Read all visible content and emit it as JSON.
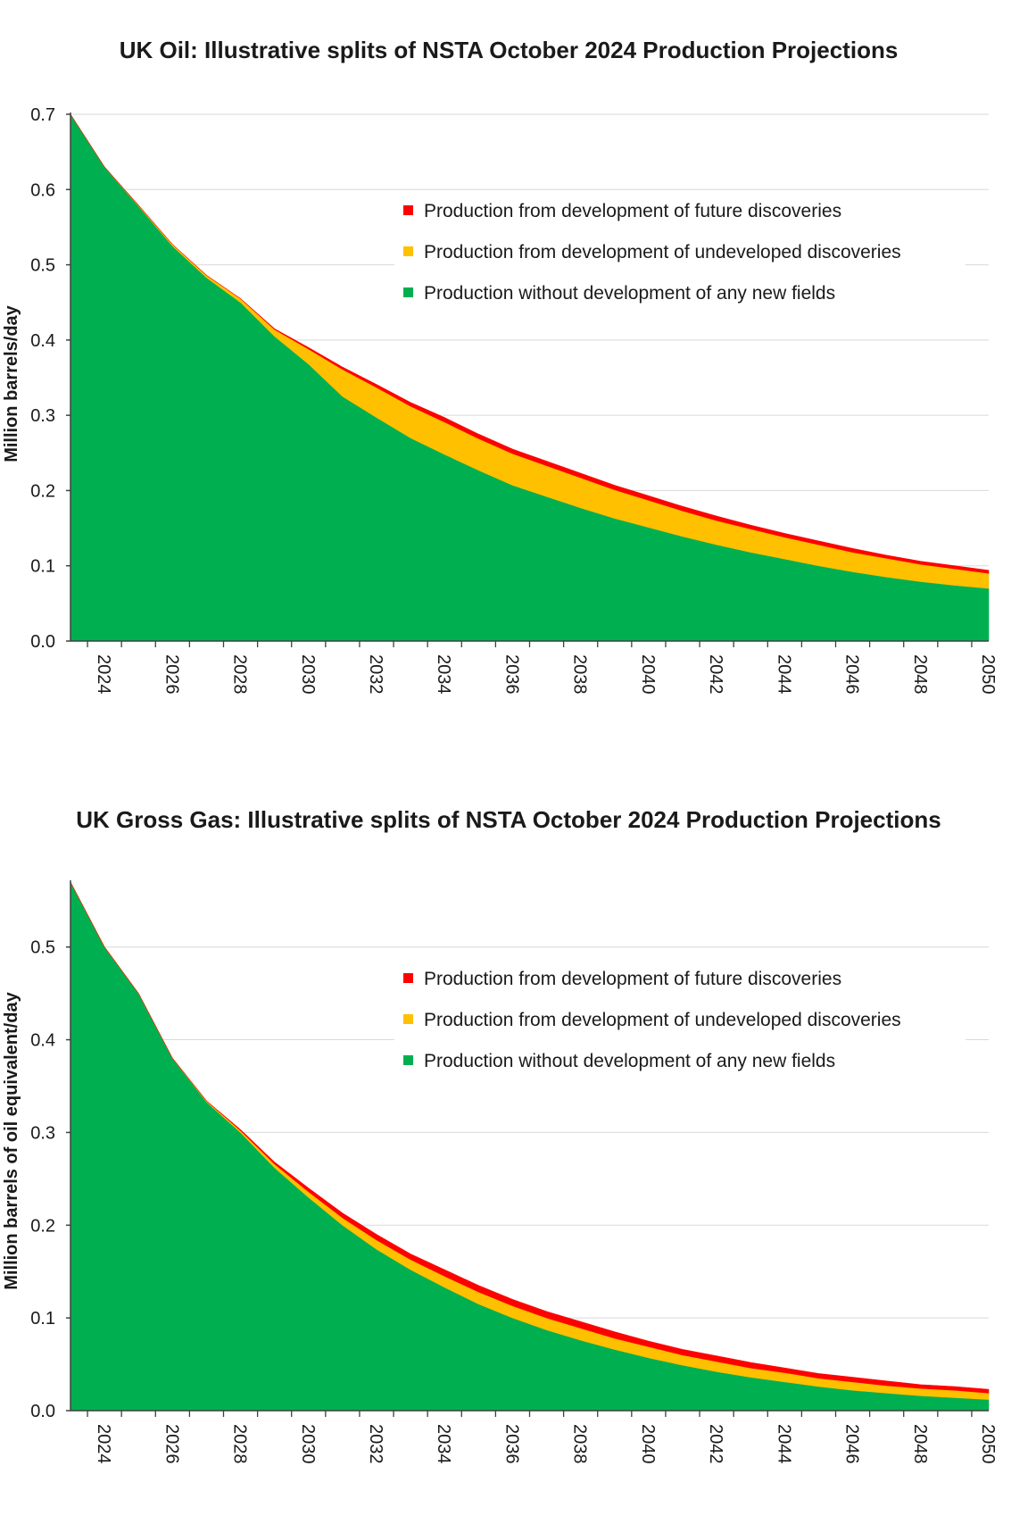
{
  "chart_data": [
    {
      "type": "area",
      "stacked": true,
      "title": "UK Oil: Illustrative splits of NSTA October 2024 Production Projections",
      "ylabel": "Million barrels/day",
      "xlabel": "",
      "ylim": [
        0,
        0.7
      ],
      "yticks": [
        "0.0",
        "0.1",
        "0.2",
        "0.3",
        "0.4",
        "0.5",
        "0.6",
        "0.7"
      ],
      "x": [
        2023,
        2024,
        2025,
        2026,
        2027,
        2028,
        2029,
        2030,
        2031,
        2032,
        2033,
        2034,
        2035,
        2036,
        2037,
        2038,
        2039,
        2040,
        2041,
        2042,
        2043,
        2044,
        2045,
        2046,
        2047,
        2048,
        2049,
        2050
      ],
      "xticks": [
        "2024",
        "2026",
        "2028",
        "2030",
        "2032",
        "2034",
        "2036",
        "2038",
        "2040",
        "2042",
        "2044",
        "2046",
        "2048",
        "2050"
      ],
      "grid": true,
      "legend_position": "upper-right",
      "series": [
        {
          "name": "Production without development of any new fields",
          "color": "#00b050",
          "values": [
            0.7,
            0.63,
            0.578,
            0.525,
            0.483,
            0.45,
            0.405,
            0.368,
            0.325,
            0.297,
            0.27,
            0.248,
            0.227,
            0.207,
            0.192,
            0.177,
            0.163,
            0.151,
            0.139,
            0.128,
            0.118,
            0.109,
            0.1,
            0.092,
            0.085,
            0.079,
            0.074,
            0.07
          ]
        },
        {
          "name": "Production from development of undeveloped discoveries",
          "color": "#ffc000",
          "values": [
            0.0,
            0.0,
            0.001,
            0.002,
            0.003,
            0.005,
            0.009,
            0.02,
            0.036,
            0.04,
            0.042,
            0.043,
            0.042,
            0.042,
            0.041,
            0.04,
            0.038,
            0.036,
            0.034,
            0.032,
            0.031,
            0.029,
            0.028,
            0.026,
            0.025,
            0.023,
            0.022,
            0.02
          ]
        },
        {
          "name": "Production from development of future discoveries",
          "color": "#ff0000",
          "values": [
            0.0,
            0.0,
            0.0,
            0.0,
            0.0,
            0.0,
            0.001,
            0.002,
            0.003,
            0.004,
            0.005,
            0.006,
            0.006,
            0.006,
            0.006,
            0.006,
            0.006,
            0.006,
            0.006,
            0.006,
            0.005,
            0.005,
            0.005,
            0.005,
            0.004,
            0.004,
            0.004,
            0.004
          ]
        }
      ]
    },
    {
      "type": "area",
      "stacked": true,
      "title": "UK Gross Gas: Illustrative splits of NSTA October 2024 Production Projections",
      "ylabel": "Million barrels of oil equivalent/day",
      "xlabel": "",
      "ylim": [
        0,
        0.57
      ],
      "yticks": [
        "0.0",
        "0.1",
        "0.2",
        "0.3",
        "0.4",
        "0.5"
      ],
      "x": [
        2023,
        2024,
        2025,
        2026,
        2027,
        2028,
        2029,
        2030,
        2031,
        2032,
        2033,
        2034,
        2035,
        2036,
        2037,
        2038,
        2039,
        2040,
        2041,
        2042,
        2043,
        2044,
        2045,
        2046,
        2047,
        2048,
        2049,
        2050
      ],
      "xticks": [
        "2024",
        "2026",
        "2028",
        "2030",
        "2032",
        "2034",
        "2036",
        "2038",
        "2040",
        "2042",
        "2044",
        "2046",
        "2048",
        "2050"
      ],
      "grid": true,
      "legend_position": "upper-right",
      "series": [
        {
          "name": "Production without development of any new fields",
          "color": "#00b050",
          "values": [
            0.57,
            0.5,
            0.45,
            0.38,
            0.333,
            0.3,
            0.262,
            0.23,
            0.2,
            0.174,
            0.152,
            0.133,
            0.115,
            0.1,
            0.087,
            0.076,
            0.066,
            0.057,
            0.049,
            0.042,
            0.036,
            0.031,
            0.026,
            0.022,
            0.019,
            0.016,
            0.014,
            0.012
          ]
        },
        {
          "name": "Production from development of undeveloped discoveries",
          "color": "#ffc000",
          "values": [
            0.0,
            0.0,
            0.0,
            0.0,
            0.001,
            0.002,
            0.004,
            0.006,
            0.008,
            0.01,
            0.011,
            0.012,
            0.013,
            0.013,
            0.013,
            0.013,
            0.012,
            0.012,
            0.011,
            0.011,
            0.01,
            0.01,
            0.009,
            0.009,
            0.008,
            0.008,
            0.008,
            0.007
          ]
        },
        {
          "name": "Production from development of future discoveries",
          "color": "#ff0000",
          "values": [
            0.0,
            0.0,
            0.0,
            0.0,
            0.0,
            0.001,
            0.002,
            0.004,
            0.005,
            0.006,
            0.006,
            0.007,
            0.007,
            0.007,
            0.007,
            0.007,
            0.007,
            0.006,
            0.006,
            0.006,
            0.006,
            0.005,
            0.005,
            0.005,
            0.005,
            0.004,
            0.004,
            0.004
          ]
        }
      ]
    }
  ]
}
